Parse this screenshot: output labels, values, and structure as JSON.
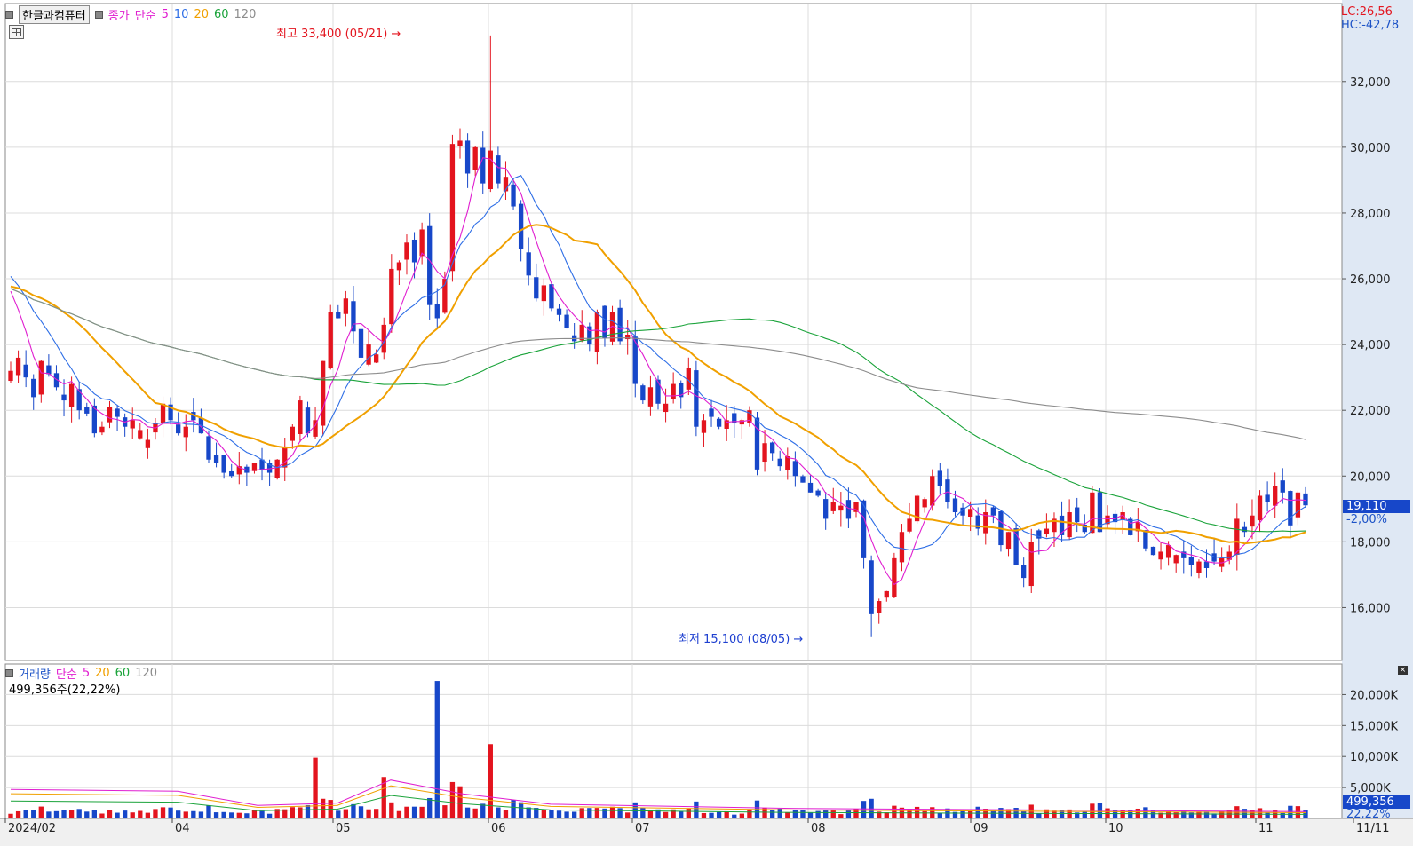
{
  "window": {
    "stock_button": "한글과컴퓨터"
  },
  "price_legend": {
    "name": "종가",
    "kind": "단순",
    "periods": [
      "5",
      "10",
      "20",
      "60",
      "120"
    ],
    "colors": [
      "#e01ed0",
      "#2e6ee6",
      "#f0a000",
      "#1aa33a",
      "#8c8c8c"
    ]
  },
  "volume_legend": {
    "name": "거래량",
    "kind": "단순",
    "periods": [
      "5",
      "20",
      "60",
      "120"
    ],
    "colors": [
      "#e01ed0",
      "#f0a000",
      "#1aa33a",
      "#8c8c8c"
    ],
    "current_value": "499,356주(22,22%)"
  },
  "right_info": {
    "lc": "LC:26,56",
    "hc": "HC:-42,78",
    "price_tag": "19,110",
    "price_change": "-2,00%",
    "volume_tag": "499,356",
    "volume_pct": "22,22%"
  },
  "annotations": {
    "high": "최고 33,400 (05/21)",
    "low": "최저 15,100 (08/05)"
  },
  "chart_data": [
    {
      "type": "candlestick",
      "x_axis_labels": [
        "2024/02",
        "04",
        "05",
        "06",
        "07",
        "08",
        "09",
        "10",
        "11",
        "11/11"
      ],
      "y_ticks": [
        16000,
        18000,
        20000,
        22000,
        24000,
        26000,
        28000,
        30000,
        32000
      ],
      "y_tick_labels": [
        "16,000",
        "18,000",
        "20,000",
        "22,000",
        "24,000",
        "26,000",
        "28,000",
        "30,000",
        "32,000"
      ],
      "ylim": [
        14500,
        34100
      ],
      "grid": true,
      "high_value": 33400,
      "low_value": 15100,
      "last_close": 19110,
      "close_series": [
        23200,
        23600,
        23000,
        22400,
        23500,
        23100,
        22700,
        22300,
        22800,
        22000,
        21900,
        21300,
        21500,
        22100,
        21800,
        21500,
        21700,
        21400,
        21100,
        21600,
        22200,
        21700,
        21300,
        21500,
        21700,
        21300,
        20500,
        20400,
        20100,
        20000,
        20300,
        20100,
        20400,
        20200,
        20100,
        20500,
        20900,
        21500,
        22300,
        21300,
        21700,
        23500,
        25000,
        24800,
        25400,
        24400,
        23600,
        24000,
        23700,
        24600,
        26300,
        26500,
        27100,
        26500,
        27500,
        25200,
        24800,
        26000,
        30100,
        30200,
        29200,
        30000,
        28900,
        29900,
        28900,
        29100,
        28200,
        26900,
        26100,
        25400,
        25800,
        25100,
        24900,
        24500,
        24100,
        24600,
        24000,
        25000,
        24200,
        25000,
        24100,
        24300,
        22800,
        22300,
        22700,
        22200,
        22200,
        22800,
        22400,
        23300,
        21500,
        21700,
        21800,
        21500,
        21700,
        21600,
        21700,
        22000,
        20200,
        21000,
        20700,
        20300,
        20600,
        20000,
        19800,
        19500,
        19400,
        18700,
        19200,
        19100,
        18700,
        19200,
        17500,
        15800,
        16200,
        16500,
        17500,
        18300,
        18700,
        19400,
        19300,
        20000,
        19700,
        19200,
        18900,
        18800,
        19000,
        18400,
        18900,
        18800,
        17900,
        18300,
        17300,
        16900,
        18000,
        18100,
        18400,
        18700,
        18200,
        18900,
        18600,
        18300,
        19500,
        18300,
        18800,
        18600,
        18900,
        18200,
        18600,
        17800,
        17600,
        17700,
        17900,
        17600,
        17500,
        17300,
        17400,
        17200,
        17400,
        17500,
        17700,
        18700,
        18300,
        18800,
        19400,
        19200,
        19700,
        19500,
        18500,
        19500,
        19110
      ]
    },
    {
      "type": "bar",
      "title": "거래량",
      "y_tick_labels": [
        "5,000K",
        "10,000K",
        "15,000K",
        "20,000K"
      ],
      "y_ticks": [
        5000,
        10000,
        15000,
        20000
      ],
      "ylim": [
        0,
        23500
      ],
      "grid": true,
      "peak_values_k": [
        9800,
        6700,
        22200,
        12000
      ],
      "last_value": 499356
    }
  ]
}
